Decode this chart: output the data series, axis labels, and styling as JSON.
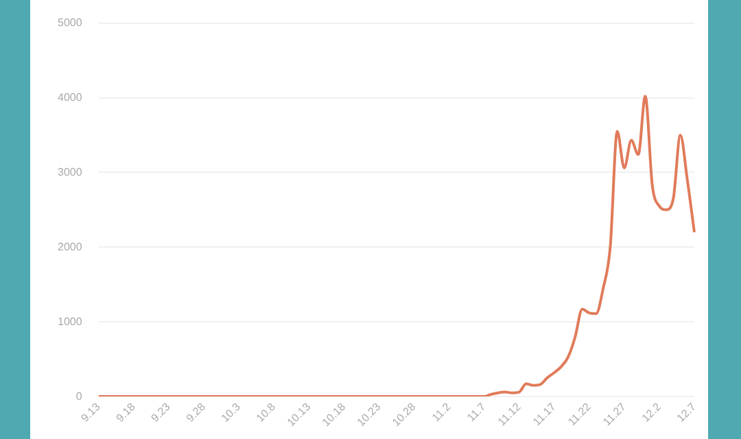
{
  "chart_data": {
    "type": "line",
    "categories": [
      "9.13",
      null,
      null,
      null,
      null,
      "9.18",
      null,
      null,
      null,
      null,
      "9.23",
      null,
      null,
      null,
      null,
      "9.28",
      null,
      null,
      null,
      null,
      "10.3",
      null,
      null,
      null,
      null,
      "10.8",
      null,
      null,
      null,
      null,
      "10.13",
      null,
      null,
      null,
      null,
      "10.18",
      null,
      null,
      null,
      null,
      "10.23",
      null,
      null,
      null,
      null,
      "10.28",
      null,
      null,
      null,
      null,
      "11.2",
      null,
      null,
      null,
      null,
      "11.7",
      null,
      null,
      null,
      null,
      "11.12",
      null,
      null,
      null,
      null,
      "11.17",
      null,
      null,
      null,
      null,
      "11.22",
      null,
      null,
      null,
      null,
      "11.27",
      null,
      null,
      null,
      null,
      "12.2",
      null,
      null,
      null,
      null,
      "12.7"
    ],
    "series": [
      {
        "color": "#e07b5a",
        "values": [
          0,
          0,
          0,
          0,
          0,
          0,
          0,
          0,
          0,
          0,
          0,
          0,
          0,
          0,
          0,
          0,
          0,
          0,
          0,
          0,
          0,
          0,
          0,
          0,
          0,
          0,
          0,
          0,
          0,
          0,
          0,
          0,
          0,
          0,
          0,
          0,
          0,
          0,
          0,
          0,
          0,
          0,
          0,
          0,
          0,
          0,
          0,
          0,
          0,
          0,
          0,
          0,
          0,
          0,
          0,
          0,
          30,
          50,
          60,
          50,
          60,
          170,
          150,
          160,
          250,
          320,
          400,
          530,
          800,
          1170,
          1120,
          1110,
          1450,
          2000,
          3550,
          3060,
          3430,
          3240,
          4020,
          2830,
          2550,
          2500,
          2650,
          3500,
          2900,
          2200
        ]
      }
    ],
    "ylim": [
      0,
      5000
    ],
    "yticks": [
      0,
      1000,
      2000,
      3000,
      4000,
      5000
    ],
    "grid": "y",
    "legend": false,
    "marker": "none",
    "line_style": "solid"
  }
}
